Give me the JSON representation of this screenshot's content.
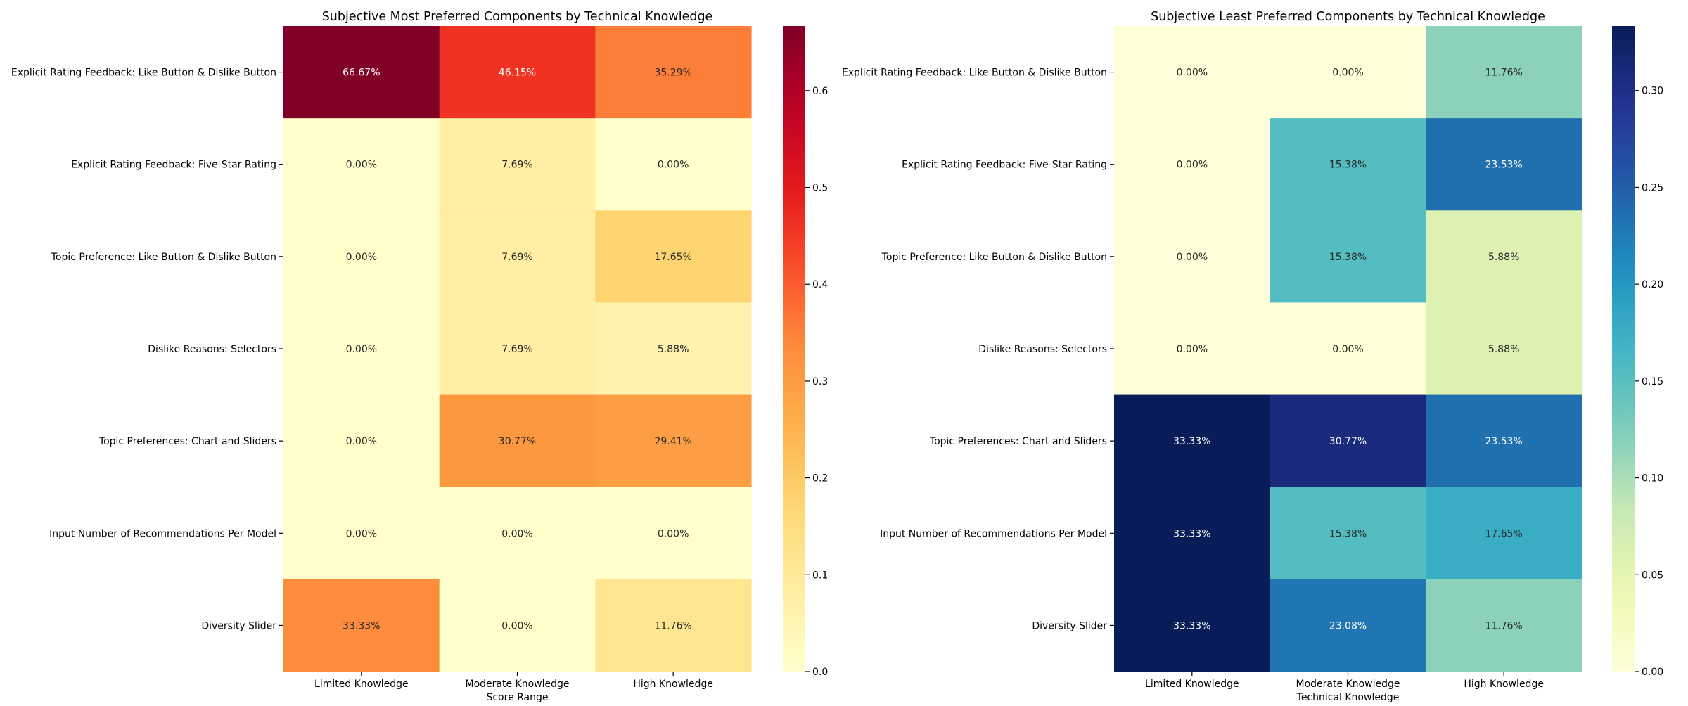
{
  "chart_data": [
    {
      "type": "heatmap",
      "title": "Subjective Most Preferred Components by Technical Knowledge",
      "xlabel": "Score Range",
      "ylabel": "",
      "x_categories": [
        "Limited Knowledge",
        "Moderate Knowledge",
        "High Knowledge"
      ],
      "y_categories": [
        "Explicit Rating Feedback: Like Button & Dislike Button",
        "Explicit Rating Feedback: Five-Star Rating",
        "Topic Preference: Like Button & Dislike Button",
        "Dislike Reasons: Selectors",
        "Topic Preferences: Chart and Sliders",
        "Input Number of Recommendations Per Model",
        "Diversity Slider"
      ],
      "values": [
        [
          0.6667,
          0.4615,
          0.3529
        ],
        [
          0.0,
          0.0769,
          0.0
        ],
        [
          0.0,
          0.0769,
          0.1765
        ],
        [
          0.0,
          0.0769,
          0.0588
        ],
        [
          0.0,
          0.3077,
          0.2941
        ],
        [
          0.0,
          0.0,
          0.0
        ],
        [
          0.3333,
          0.0,
          0.1176
        ]
      ],
      "annotations": [
        [
          "66.67%",
          "46.15%",
          "35.29%"
        ],
        [
          "0.00%",
          "7.69%",
          "0.00%"
        ],
        [
          "0.00%",
          "7.69%",
          "17.65%"
        ],
        [
          "0.00%",
          "7.69%",
          "5.88%"
        ],
        [
          "0.00%",
          "30.77%",
          "29.41%"
        ],
        [
          "0.00%",
          "0.00%",
          "0.00%"
        ],
        [
          "33.33%",
          "0.00%",
          "11.76%"
        ]
      ],
      "colormap": "YlOrRd",
      "vmin": 0,
      "vmax": 0.6667,
      "colorbar_ticks": [
        0.0,
        0.1,
        0.2,
        0.3,
        0.4,
        0.5,
        0.6
      ],
      "colorbar_tick_labels": [
        "0.0",
        "0.1",
        "0.2",
        "0.3",
        "0.4",
        "0.5",
        "0.6"
      ]
    },
    {
      "type": "heatmap",
      "title": "Subjective Least Preferred Components by Technical Knowledge",
      "xlabel": "Technical Knowledge",
      "ylabel": "",
      "x_categories": [
        "Limited Knowledge",
        "Moderate Knowledge",
        "High Knowledge"
      ],
      "y_categories": [
        "Explicit Rating Feedback: Like Button & Dislike Button",
        "Explicit Rating Feedback: Five-Star Rating",
        "Topic Preference: Like Button & Dislike Button",
        "Dislike Reasons: Selectors",
        "Topic Preferences: Chart and Sliders",
        "Input Number of Recommendations Per Model",
        "Diversity Slider"
      ],
      "values": [
        [
          0.0,
          0.0,
          0.1176
        ],
        [
          0.0,
          0.1538,
          0.2353
        ],
        [
          0.0,
          0.1538,
          0.0588
        ],
        [
          0.0,
          0.0,
          0.0588
        ],
        [
          0.3333,
          0.3077,
          0.2353
        ],
        [
          0.3333,
          0.1538,
          0.1765
        ],
        [
          0.3333,
          0.2308,
          0.1176
        ]
      ],
      "annotations": [
        [
          "0.00%",
          "0.00%",
          "11.76%"
        ],
        [
          "0.00%",
          "15.38%",
          "23.53%"
        ],
        [
          "0.00%",
          "15.38%",
          "5.88%"
        ],
        [
          "0.00%",
          "0.00%",
          "5.88%"
        ],
        [
          "33.33%",
          "30.77%",
          "23.53%"
        ],
        [
          "33.33%",
          "15.38%",
          "17.65%"
        ],
        [
          "33.33%",
          "23.08%",
          "11.76%"
        ]
      ],
      "colormap": "YlGnBu",
      "vmin": 0,
      "vmax": 0.3333,
      "colorbar_ticks": [
        0.0,
        0.05,
        0.1,
        0.15,
        0.2,
        0.25,
        0.3
      ],
      "colorbar_tick_labels": [
        "0.00",
        "0.05",
        "0.10",
        "0.15",
        "0.20",
        "0.25",
        "0.30"
      ]
    }
  ]
}
